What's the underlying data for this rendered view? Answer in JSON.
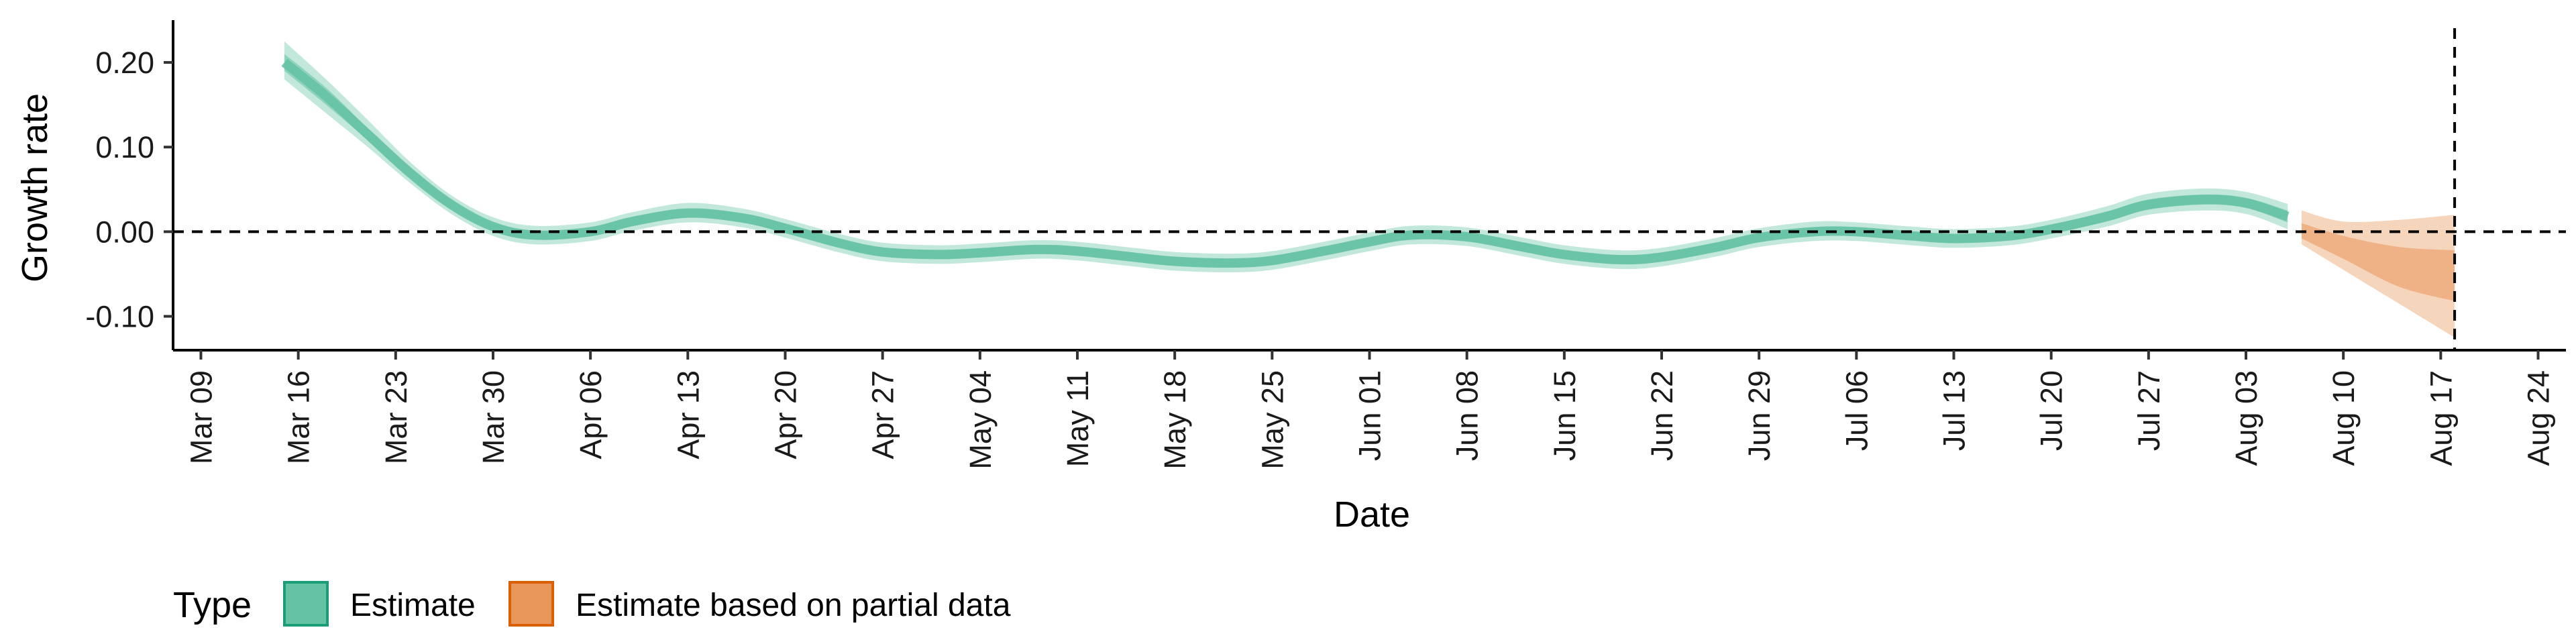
{
  "chart_data": {
    "type": "line",
    "xlabel": "Date",
    "ylabel": "Growth rate",
    "x_range": [
      "2020-03-07",
      "2020-08-26"
    ],
    "ylim": [
      -0.14,
      0.25
    ],
    "y_ticks": [
      {
        "value": 0.2,
        "label": "0.20"
      },
      {
        "value": 0.1,
        "label": "0.10"
      },
      {
        "value": 0.0,
        "label": "0.00"
      },
      {
        "value": -0.1,
        "label": "-0.10"
      }
    ],
    "x_ticks": [
      {
        "date": "2020-03-09",
        "label": "Mar 09"
      },
      {
        "date": "2020-03-16",
        "label": "Mar 16"
      },
      {
        "date": "2020-03-23",
        "label": "Mar 23"
      },
      {
        "date": "2020-03-30",
        "label": "Mar 30"
      },
      {
        "date": "2020-04-06",
        "label": "Apr 06"
      },
      {
        "date": "2020-04-13",
        "label": "Apr 13"
      },
      {
        "date": "2020-04-20",
        "label": "Apr 20"
      },
      {
        "date": "2020-04-27",
        "label": "Apr 27"
      },
      {
        "date": "2020-05-04",
        "label": "May 04"
      },
      {
        "date": "2020-05-11",
        "label": "May 11"
      },
      {
        "date": "2020-05-18",
        "label": "May 18"
      },
      {
        "date": "2020-05-25",
        "label": "May 25"
      },
      {
        "date": "2020-06-01",
        "label": "Jun 01"
      },
      {
        "date": "2020-06-08",
        "label": "Jun 08"
      },
      {
        "date": "2020-06-15",
        "label": "Jun 15"
      },
      {
        "date": "2020-06-22",
        "label": "Jun 22"
      },
      {
        "date": "2020-06-29",
        "label": "Jun 29"
      },
      {
        "date": "2020-07-06",
        "label": "Jul 06"
      },
      {
        "date": "2020-07-13",
        "label": "Jul 13"
      },
      {
        "date": "2020-07-20",
        "label": "Jul 20"
      },
      {
        "date": "2020-07-27",
        "label": "Jul 27"
      },
      {
        "date": "2020-08-03",
        "label": "Aug 03"
      },
      {
        "date": "2020-08-10",
        "label": "Aug 10"
      },
      {
        "date": "2020-08-17",
        "label": "Aug 17"
      },
      {
        "date": "2020-08-24",
        "label": "Aug 24"
      }
    ],
    "reference_lines": {
      "horizontal_y": 0.0,
      "vertical_date": "2020-08-18",
      "style": "dashed"
    },
    "legend": {
      "title": "Type",
      "position": "bottom-left",
      "entries": [
        {
          "label": "Estimate",
          "color": "#66C2A5",
          "border": "#1B9E77"
        },
        {
          "label": "Estimate based on partial data",
          "color": "#E8965A",
          "border": "#D95F02"
        }
      ]
    },
    "series": [
      {
        "name": "Estimate",
        "color": "#66C2A5",
        "points": [
          {
            "x": "2020-03-15",
            "y": 0.2,
            "lo90": 0.18,
            "hi90": 0.225,
            "lo50": 0.19,
            "hi50": 0.21
          },
          {
            "x": "2020-03-18",
            "y": 0.16,
            "lo90": 0.14,
            "hi90": 0.18,
            "lo50": 0.15,
            "hi50": 0.17
          },
          {
            "x": "2020-03-21",
            "y": 0.115,
            "lo90": 0.1,
            "hi90": 0.132,
            "lo50": 0.108,
            "hi50": 0.122
          },
          {
            "x": "2020-03-24",
            "y": 0.07,
            "lo90": 0.058,
            "hi90": 0.083,
            "lo50": 0.064,
            "hi50": 0.076
          },
          {
            "x": "2020-03-27",
            "y": 0.032,
            "lo90": 0.021,
            "hi90": 0.043,
            "lo50": 0.027,
            "hi50": 0.037
          },
          {
            "x": "2020-03-30",
            "y": 0.006,
            "lo90": -0.005,
            "hi90": 0.017,
            "lo50": 0.001,
            "hi50": 0.011
          },
          {
            "x": "2020-04-02",
            "y": -0.004,
            "lo90": -0.015,
            "hi90": 0.007,
            "lo50": -0.009,
            "hi50": 0.001
          },
          {
            "x": "2020-04-06",
            "y": 0.0,
            "lo90": -0.011,
            "hi90": 0.011,
            "lo50": -0.005,
            "hi50": 0.005
          },
          {
            "x": "2020-04-09",
            "y": 0.012,
            "lo90": 0.001,
            "hi90": 0.023,
            "lo50": 0.007,
            "hi50": 0.017
          },
          {
            "x": "2020-04-13",
            "y": 0.022,
            "lo90": 0.011,
            "hi90": 0.034,
            "lo50": 0.017,
            "hi50": 0.027
          },
          {
            "x": "2020-04-17",
            "y": 0.016,
            "lo90": 0.005,
            "hi90": 0.027,
            "lo50": 0.011,
            "hi50": 0.021
          },
          {
            "x": "2020-04-20",
            "y": 0.004,
            "lo90": -0.007,
            "hi90": 0.015,
            "lo50": -0.001,
            "hi50": 0.009
          },
          {
            "x": "2020-04-24",
            "y": -0.014,
            "lo90": -0.025,
            "hi90": -0.003,
            "lo50": -0.019,
            "hi50": -0.009
          },
          {
            "x": "2020-04-27",
            "y": -0.024,
            "lo90": -0.035,
            "hi90": -0.013,
            "lo50": -0.029,
            "hi50": -0.019
          },
          {
            "x": "2020-05-01",
            "y": -0.027,
            "lo90": -0.038,
            "hi90": -0.016,
            "lo50": -0.032,
            "hi50": -0.022
          },
          {
            "x": "2020-05-04",
            "y": -0.025,
            "lo90": -0.036,
            "hi90": -0.014,
            "lo50": -0.03,
            "hi50": -0.02
          },
          {
            "x": "2020-05-08",
            "y": -0.021,
            "lo90": -0.032,
            "hi90": -0.01,
            "lo50": -0.026,
            "hi50": -0.016
          },
          {
            "x": "2020-05-11",
            "y": -0.023,
            "lo90": -0.034,
            "hi90": -0.012,
            "lo50": -0.028,
            "hi50": -0.018
          },
          {
            "x": "2020-05-15",
            "y": -0.03,
            "lo90": -0.041,
            "hi90": -0.019,
            "lo50": -0.035,
            "hi50": -0.025
          },
          {
            "x": "2020-05-18",
            "y": -0.035,
            "lo90": -0.046,
            "hi90": -0.024,
            "lo50": -0.04,
            "hi50": -0.03
          },
          {
            "x": "2020-05-22",
            "y": -0.037,
            "lo90": -0.048,
            "hi90": -0.026,
            "lo50": -0.042,
            "hi50": -0.032
          },
          {
            "x": "2020-05-25",
            "y": -0.034,
            "lo90": -0.045,
            "hi90": -0.023,
            "lo50": -0.039,
            "hi50": -0.029
          },
          {
            "x": "2020-05-29",
            "y": -0.022,
            "lo90": -0.033,
            "hi90": -0.011,
            "lo50": -0.027,
            "hi50": -0.017
          },
          {
            "x": "2020-06-01",
            "y": -0.012,
            "lo90": -0.023,
            "hi90": -0.001,
            "lo50": -0.017,
            "hi50": -0.007
          },
          {
            "x": "2020-06-04",
            "y": -0.004,
            "lo90": -0.015,
            "hi90": 0.007,
            "lo50": -0.009,
            "hi50": 0.001
          },
          {
            "x": "2020-06-08",
            "y": -0.006,
            "lo90": -0.017,
            "hi90": 0.005,
            "lo50": -0.011,
            "hi50": -0.001
          },
          {
            "x": "2020-06-12",
            "y": -0.018,
            "lo90": -0.029,
            "hi90": -0.007,
            "lo50": -0.023,
            "hi50": -0.013
          },
          {
            "x": "2020-06-15",
            "y": -0.027,
            "lo90": -0.038,
            "hi90": -0.016,
            "lo50": -0.032,
            "hi50": -0.022
          },
          {
            "x": "2020-06-19",
            "y": -0.033,
            "lo90": -0.044,
            "hi90": -0.022,
            "lo50": -0.038,
            "hi50": -0.028
          },
          {
            "x": "2020-06-22",
            "y": -0.03,
            "lo90": -0.041,
            "hi90": -0.019,
            "lo50": -0.035,
            "hi50": -0.025
          },
          {
            "x": "2020-06-26",
            "y": -0.018,
            "lo90": -0.029,
            "hi90": -0.007,
            "lo50": -0.023,
            "hi50": -0.013
          },
          {
            "x": "2020-06-29",
            "y": -0.007,
            "lo90": -0.018,
            "hi90": 0.004,
            "lo50": -0.012,
            "hi50": -0.002
          },
          {
            "x": "2020-07-03",
            "y": 0.0,
            "lo90": -0.011,
            "hi90": 0.012,
            "lo50": -0.005,
            "hi50": 0.005
          },
          {
            "x": "2020-07-06",
            "y": 0.0,
            "lo90": -0.011,
            "hi90": 0.011,
            "lo50": -0.005,
            "hi50": 0.005
          },
          {
            "x": "2020-07-10",
            "y": -0.005,
            "lo90": -0.016,
            "hi90": 0.006,
            "lo50": -0.01,
            "hi50": 0.0
          },
          {
            "x": "2020-07-13",
            "y": -0.008,
            "lo90": -0.019,
            "hi90": 0.003,
            "lo50": -0.013,
            "hi50": -0.003
          },
          {
            "x": "2020-07-17",
            "y": -0.005,
            "lo90": -0.016,
            "hi90": 0.006,
            "lo50": -0.01,
            "hi50": 0.0
          },
          {
            "x": "2020-07-20",
            "y": 0.003,
            "lo90": -0.008,
            "hi90": 0.014,
            "lo50": -0.002,
            "hi50": 0.008
          },
          {
            "x": "2020-07-24",
            "y": 0.018,
            "lo90": 0.006,
            "hi90": 0.03,
            "lo50": 0.012,
            "hi50": 0.024
          },
          {
            "x": "2020-07-27",
            "y": 0.032,
            "lo90": 0.02,
            "hi90": 0.045,
            "lo50": 0.026,
            "hi50": 0.038
          },
          {
            "x": "2020-07-31",
            "y": 0.038,
            "lo90": 0.025,
            "hi90": 0.051,
            "lo50": 0.032,
            "hi50": 0.044
          },
          {
            "x": "2020-08-03",
            "y": 0.034,
            "lo90": 0.021,
            "hi90": 0.047,
            "lo50": 0.028,
            "hi50": 0.04
          },
          {
            "x": "2020-08-06",
            "y": 0.018,
            "lo90": 0.003,
            "hi90": 0.033,
            "lo50": 0.011,
            "hi50": 0.025
          }
        ]
      },
      {
        "name": "Estimate based on partial data",
        "color": "#E8965A",
        "points": [
          {
            "x": "2020-08-07",
            "y": 0.0,
            "lo90": -0.015,
            "hi90": 0.025,
            "lo50": -0.008,
            "hi50": 0.01
          },
          {
            "x": "2020-08-10",
            "y": -0.02,
            "lo90": -0.045,
            "hi90": 0.012,
            "lo50": -0.032,
            "hi50": -0.005
          },
          {
            "x": "2020-08-14",
            "y": -0.048,
            "lo90": -0.085,
            "hi90": 0.014,
            "lo50": -0.065,
            "hi50": -0.018
          },
          {
            "x": "2020-08-18",
            "y": -0.07,
            "lo90": -0.125,
            "hi90": 0.02,
            "lo50": -0.082,
            "hi50": -0.022
          }
        ]
      }
    ]
  }
}
